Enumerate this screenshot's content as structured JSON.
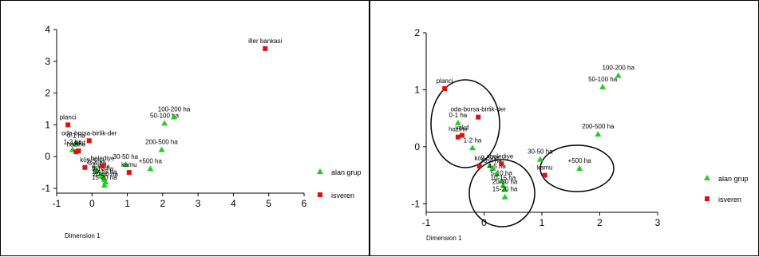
{
  "colors": {
    "alan_grup": "#22cc22",
    "isveren": "#dd1111",
    "axis": "#000000",
    "background": "#ffffff"
  },
  "chart_data": [
    {
      "type": "scatter",
      "xlabel": "Dimension 1",
      "ylabel": "",
      "xlim": [
        -1,
        6
      ],
      "ylim": [
        -1.15,
        4
      ],
      "xticks": [
        "-1",
        "0",
        "1",
        "2",
        "3",
        "4",
        "5",
        "6"
      ],
      "yticks": [
        "-1",
        "0",
        "1",
        "2",
        "3",
        "4"
      ],
      "grid": false,
      "legend_position": "right",
      "series": [
        {
          "name": "alan grup",
          "marker": "triangle",
          "points": [
            {
              "label": "0-1 ha",
              "x": -0.45,
              "y": 0.42
            },
            {
              "label": "1-2 ha",
              "x": -0.55,
              "y": 0.22
            },
            {
              "label": "2-3 ha",
              "x": 0.1,
              "y": -0.38
            },
            {
              "label": "3-4 ha",
              "x": 0.15,
              "y": -0.45
            },
            {
              "label": "4-5 ha",
              "x": 0.25,
              "y": -0.55
            },
            {
              "label": "5-10 ha",
              "x": 0.3,
              "y": -0.62
            },
            {
              "label": "10-15 ha",
              "x": 0.35,
              "y": -0.72
            },
            {
              "label": "20-30 ha",
              "x": 0.38,
              "y": -0.8
            },
            {
              "label": "15-20 ha",
              "x": 0.35,
              "y": -0.9
            },
            {
              "label": "30-50 ha",
              "x": 0.95,
              "y": -0.25
            },
            {
              "label": "+500 ha",
              "x": 1.65,
              "y": -0.38
            },
            {
              "label": "200-500 ha",
              "x": 1.97,
              "y": 0.22
            },
            {
              "label": "50-100 ha",
              "x": 2.05,
              "y": 1.05
            },
            {
              "label": "100-200 ha",
              "x": 2.32,
              "y": 1.25
            }
          ]
        },
        {
          "name": "isveren",
          "marker": "square",
          "points": [
            {
              "label": "planci",
              "x": -0.68,
              "y": 1.0
            },
            {
              "label": "oda-borsa-birlik-der",
              "x": -0.08,
              "y": 0.5
            },
            {
              "label": "hazine",
              "x": -0.45,
              "y": 0.15
            },
            {
              "label": "vakıf",
              "x": -0.38,
              "y": 0.18
            },
            {
              "label": "köy",
              "x": -0.2,
              "y": -0.34
            },
            {
              "label": "belediye",
              "x": 0.3,
              "y": -0.3
            },
            {
              "label": "kamu",
              "x": 1.05,
              "y": -0.5
            },
            {
              "label": "iller bankasi",
              "x": 4.9,
              "y": 3.4
            }
          ]
        }
      ]
    },
    {
      "type": "scatter",
      "xlabel": "Dimension 1",
      "ylabel": "",
      "xlim": [
        -1,
        3
      ],
      "ylim": [
        -1.15,
        2
      ],
      "xticks": [
        "-1",
        "0",
        "1",
        "2",
        "3"
      ],
      "yticks": [
        "-1",
        "0",
        "1",
        "2"
      ],
      "grid": false,
      "legend_position": "right",
      "annotations": "three hand-drawn circles around point clusters",
      "series": [
        {
          "name": "alan grup",
          "marker": "triangle",
          "points": [
            {
              "label": "0-1 ha",
              "x": -0.45,
              "y": 0.42
            },
            {
              "label": "1-2 ha",
              "x": -0.2,
              "y": -0.02
            },
            {
              "label": "2-3 ha",
              "x": 0.1,
              "y": -0.33
            },
            {
              "label": "3-4 ha",
              "x": 0.15,
              "y": -0.38
            },
            {
              "label": "4-5 ha",
              "x": 0.22,
              "y": -0.48
            },
            {
              "label": "5-10 ha",
              "x": 0.3,
              "y": -0.6
            },
            {
              "label": "10-15 ha",
              "x": 0.33,
              "y": -0.68
            },
            {
              "label": "20-30 ha",
              "x": 0.36,
              "y": -0.75
            },
            {
              "label": "15-20 ha",
              "x": 0.36,
              "y": -0.88
            },
            {
              "label": "30-50 ha",
              "x": 0.97,
              "y": -0.22
            },
            {
              "label": "+500 ha",
              "x": 1.65,
              "y": -0.38
            },
            {
              "label": "200-500 ha",
              "x": 1.97,
              "y": 0.22
            },
            {
              "label": "50-100 ha",
              "x": 2.05,
              "y": 1.05
            },
            {
              "label": "100-200 ha",
              "x": 2.32,
              "y": 1.25
            }
          ]
        },
        {
          "name": "isveren",
          "marker": "square",
          "points": [
            {
              "label": "planci",
              "x": -0.68,
              "y": 1.02
            },
            {
              "label": "oda-borsa-birlik-der",
              "x": -0.1,
              "y": 0.52
            },
            {
              "label": "hazine",
              "x": -0.45,
              "y": 0.17
            },
            {
              "label": "vakıf",
              "x": -0.38,
              "y": 0.2
            },
            {
              "label": "köy",
              "x": -0.08,
              "y": -0.34
            },
            {
              "label": "belediye",
              "x": 0.3,
              "y": -0.3
            },
            {
              "label": "kamu",
              "x": 1.05,
              "y": -0.5
            }
          ]
        }
      ]
    }
  ]
}
